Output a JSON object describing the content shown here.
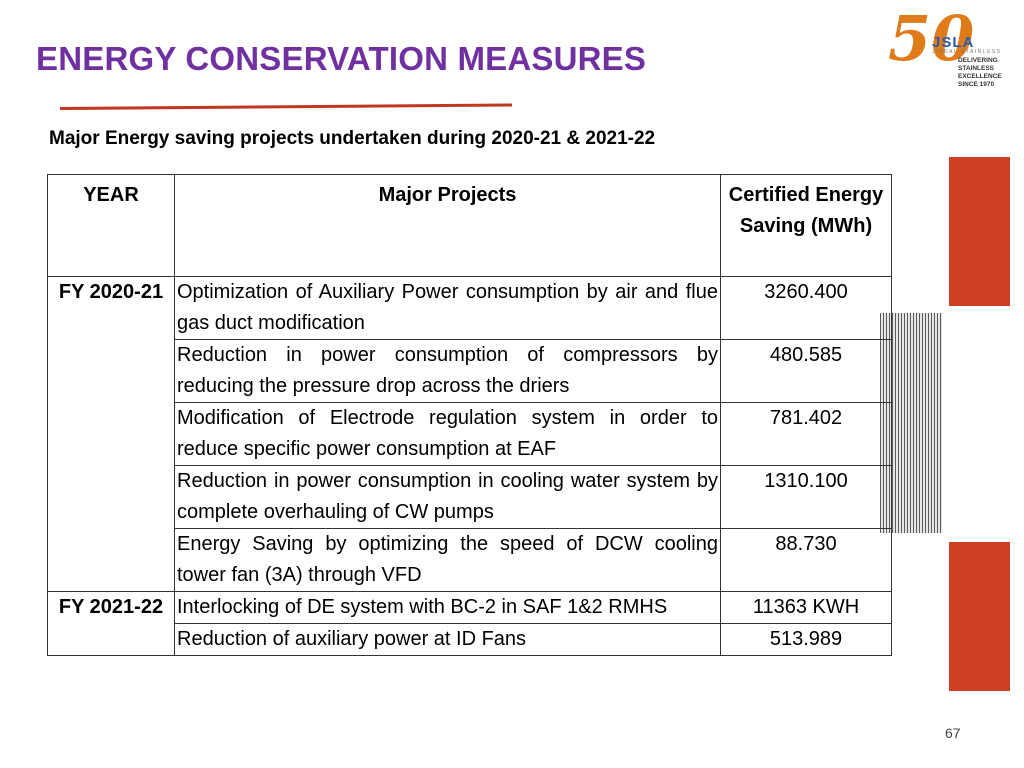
{
  "header": {
    "title": "ENERGY CONSERVATION MEASURES",
    "subtitle": "Major Energy saving projects undertaken during 2020-21 & 2021-22"
  },
  "logo": {
    "number": "50",
    "brand": "JSLA",
    "brand_sub": "JINDAL STAINLESS",
    "tagline": [
      "DELIVERING",
      "STAINLESS EXCELLENCE",
      "SINCE 1970"
    ]
  },
  "table": {
    "headers": [
      "YEAR",
      "Major Projects",
      "Certified Energy Saving (MWh)"
    ],
    "groups": [
      {
        "year": "FY 2020-21",
        "rows": [
          {
            "project": "Optimization of Auxiliary Power consumption by air and flue gas  duct modification",
            "saving": "3260.400"
          },
          {
            "project": "Reduction in power consumption of  compressors by reducing the pressure drop across the driers",
            "saving": "480.585"
          },
          {
            "project": "Modification of Electrode regulation system in order to reduce specific power consumption at EAF",
            "saving": "781.402"
          },
          {
            "project": "Reduction in power consumption in cooling water system  by complete overhauling of CW pumps",
            "saving": "1310.100"
          },
          {
            "project": "Energy Saving by optimizing the speed of DCW cooling tower   fan (3A) through VFD",
            "saving": "88.730"
          }
        ]
      },
      {
        "year": "FY 2021-22",
        "rows": [
          {
            "project": "Interlocking of DE system with BC-2 in SAF 1&2 RMHS",
            "saving": "11363 KWH"
          },
          {
            "project": "Reduction of auxiliary power at  ID Fans",
            "saving": "513.989"
          }
        ]
      }
    ]
  },
  "footer": {
    "page_number": "67"
  },
  "colors": {
    "title": "#7030a0",
    "accent_red": "#cc3f22",
    "logo_orange": "#e07b1a",
    "logo_blue": "#2e5aa8"
  }
}
